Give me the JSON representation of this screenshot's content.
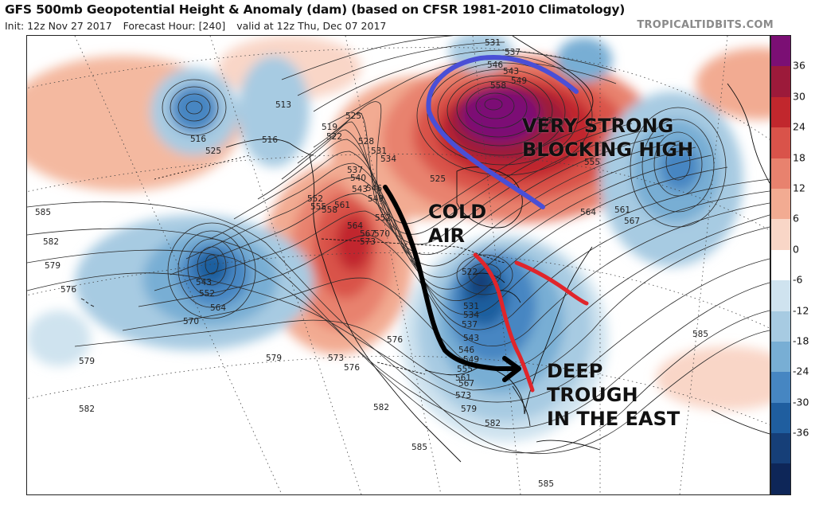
{
  "header": {
    "title": "GFS 500mb Geopotential Height & Anomaly (dam) (based on CFSR 1981-2010 Climatology)",
    "init": "Init: 12z Nov 27 2017",
    "forecast_hour": "Forecast Hour: [240]",
    "valid": "valid at 12z Thu, Dec 07 2017",
    "brand": "TROPICALTIDBITS.COM"
  },
  "annotations": {
    "blocking_line1": "VERY STRONG",
    "blocking_line2": "BLOCKING HIGH",
    "cold_line1": "COLD",
    "cold_line2": "AIR",
    "trough_line1": "DEEP",
    "trough_line2": "TROUGH",
    "trough_line3": "IN THE EAST"
  },
  "colorbar": {
    "labels": [
      "36",
      "30",
      "24",
      "18",
      "12",
      "6",
      "0",
      "-6",
      "-12",
      "-18",
      "-24",
      "-30",
      "-36"
    ],
    "colors": [
      "#7b0f74",
      "#9c1a3a",
      "#c1272d",
      "#d9534a",
      "#e8826e",
      "#f2ab92",
      "#f9d6c7",
      "#ffffff",
      "#cfe3ef",
      "#a7cbe2",
      "#78aed4",
      "#4686c2",
      "#1f5e9f",
      "#163f78",
      "#0e2658"
    ]
  },
  "contour_labels": [
    {
      "text": "531"
    },
    {
      "text": "537"
    },
    {
      "text": "546"
    },
    {
      "text": "543"
    },
    {
      "text": "549"
    },
    {
      "text": "558"
    },
    {
      "text": "555"
    },
    {
      "text": "555"
    },
    {
      "text": "561"
    },
    {
      "text": "564"
    },
    {
      "text": "567"
    },
    {
      "text": "513"
    },
    {
      "text": "516"
    },
    {
      "text": "516"
    },
    {
      "text": "519"
    },
    {
      "text": "522"
    },
    {
      "text": "525"
    },
    {
      "text": "525"
    },
    {
      "text": "528"
    },
    {
      "text": "531"
    },
    {
      "text": "534"
    },
    {
      "text": "537"
    },
    {
      "text": "540"
    },
    {
      "text": "543"
    },
    {
      "text": "546"
    },
    {
      "text": "549"
    },
    {
      "text": "552"
    },
    {
      "text": "555"
    },
    {
      "text": "558"
    },
    {
      "text": "561"
    },
    {
      "text": "552"
    },
    {
      "text": "564"
    },
    {
      "text": "567"
    },
    {
      "text": "570"
    },
    {
      "text": "573"
    },
    {
      "text": "585"
    },
    {
      "text": "582"
    },
    {
      "text": "579"
    },
    {
      "text": "576"
    },
    {
      "text": "543"
    },
    {
      "text": "552"
    },
    {
      "text": "564"
    },
    {
      "text": "570"
    },
    {
      "text": "579"
    },
    {
      "text": "579"
    },
    {
      "text": "573"
    },
    {
      "text": "576"
    },
    {
      "text": "576"
    },
    {
      "text": "582"
    },
    {
      "text": "582"
    },
    {
      "text": "585"
    },
    {
      "text": "522"
    },
    {
      "text": "531"
    },
    {
      "text": "534"
    },
    {
      "text": "537"
    },
    {
      "text": "543"
    },
    {
      "text": "546"
    },
    {
      "text": "549"
    },
    {
      "text": "555"
    },
    {
      "text": "561"
    },
    {
      "text": "567"
    },
    {
      "text": "573"
    },
    {
      "text": "579"
    },
    {
      "text": "582"
    },
    {
      "text": "585"
    },
    {
      "text": "585"
    },
    {
      "text": "525"
    }
  ],
  "colors": {
    "blocking_arrow": "#4a4fd6",
    "cold_arrow": "#000000",
    "trough_line": "#e0252b",
    "contour": "#2a2a2a"
  }
}
